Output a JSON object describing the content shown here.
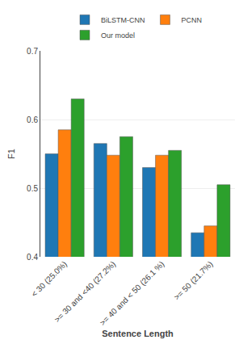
{
  "chart_data": {
    "type": "bar",
    "categories": [
      "< 30 (25.0%)",
      ">= 30 and <40 (27.2%)",
      ">= 40 and < 50 (26.1 %)",
      ">= 50 (21.7%)"
    ],
    "series": [
      {
        "name": "BiLSTM-CNN",
        "values": [
          0.55,
          0.565,
          0.53,
          0.435
        ]
      },
      {
        "name": "PCNN",
        "values": [
          0.585,
          0.548,
          0.548,
          0.445
        ]
      },
      {
        "name": "Our model",
        "values": [
          0.63,
          0.575,
          0.555,
          0.505
        ]
      }
    ],
    "xlabel": "Sentence Length",
    "ylabel": "F1",
    "ylim": [
      0.4,
      0.7
    ],
    "yticks": [
      0.4,
      0.5,
      0.6,
      0.7
    ],
    "grid": true,
    "legend": "top"
  }
}
